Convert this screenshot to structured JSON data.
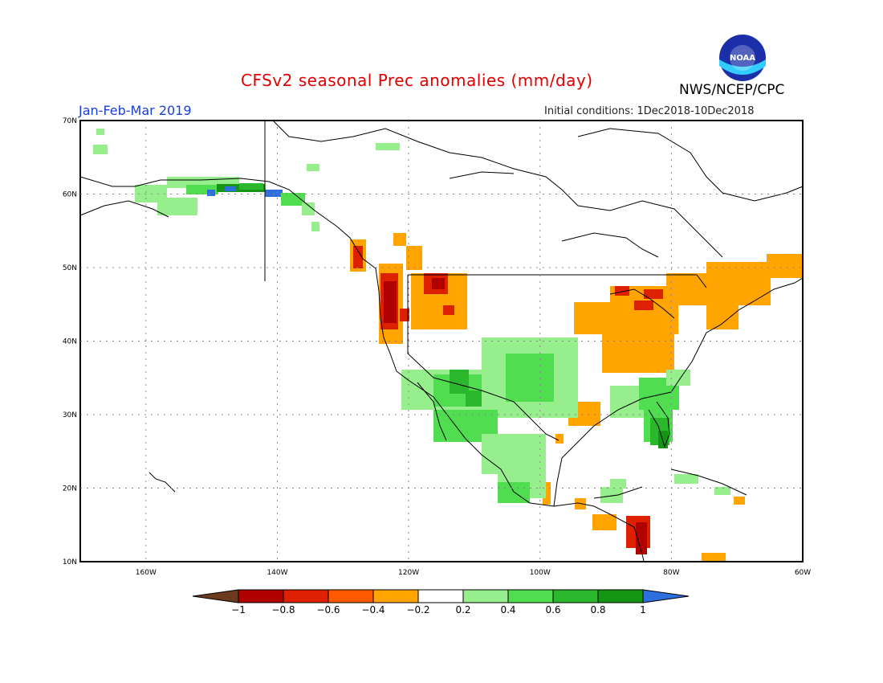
{
  "header": {
    "title": "CFSv2 seasonal Prec anomalies (mm/day)",
    "period": "Jan-Feb-Mar 2019",
    "initial_conditions": "Initial conditions: 1Dec2018-10Dec2018",
    "agency": "NWS/NCEP/CPC",
    "logo_text": "NOAA",
    "logo_icon": "noaa-logo"
  },
  "map": {
    "lon_range": [
      -170,
      -60
    ],
    "lat_range": [
      10,
      70
    ],
    "lat_labels": [
      "70N",
      "60N",
      "50N",
      "40N",
      "30N",
      "20N",
      "10N"
    ],
    "lon_labels": [
      "160W",
      "140W",
      "120W",
      "100W",
      "80W",
      "60W"
    ]
  },
  "colorbar": {
    "labels": [
      "-1",
      "-0.8",
      "-0.6",
      "-0.4",
      "-0.2",
      "0.2",
      "0.4",
      "0.6",
      "0.8",
      "1"
    ],
    "colors": {
      "below_-1": "#6b3a1f",
      "-1_-0.8": "#b00000",
      "-0.8_-0.6": "#dd2000",
      "-0.6_-0.4": "#ff5a00",
      "-0.4_-0.2": "#ffa400",
      "-0.2_0.2": "#ffffff",
      "0.2_0.4": "#96ee8c",
      "0.4_0.6": "#50de50",
      "0.6_0.8": "#2cb82c",
      "0.8_1": "#149614",
      "above_1": "#2e6fe0"
    }
  }
}
